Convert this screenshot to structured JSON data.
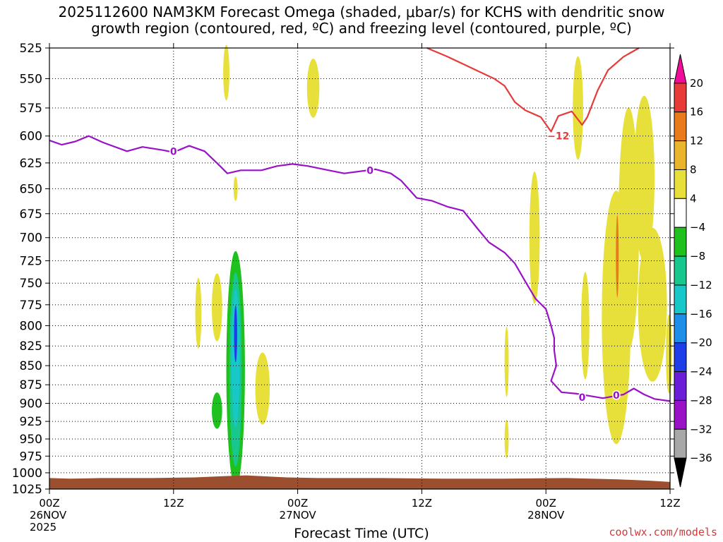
{
  "title_line1": "2025112600 NAM3KM Forecast Omega (shaded, μbar/s) for KCHS with dendritic snow",
  "title_line2": "growth region (contoured, red, ºC) and freezing level (contoured, purple, ºC)",
  "credit": "coolwx.com/models",
  "chart_data": {
    "type": "time-height",
    "title": "2025112600 NAM3KM Forecast Omega (shaded, μbar/s) for KCHS with dendritic snow growth region (contoured, red, ºC) and freezing level (contoured, purple, ºC)",
    "xlabel": "Forecast Time (UTC)",
    "x_ticks": [
      {
        "hour": 0,
        "l1": "00Z",
        "l2": "26NOV",
        "l3": "2025"
      },
      {
        "hour": 12,
        "l1": "12Z",
        "l2": "",
        "l3": ""
      },
      {
        "hour": 24,
        "l1": "00Z",
        "l2": "27NOV",
        "l3": ""
      },
      {
        "hour": 36,
        "l1": "12Z",
        "l2": "",
        "l3": ""
      },
      {
        "hour": 48,
        "l1": "00Z",
        "l2": "28NOV",
        "l3": ""
      },
      {
        "hour": 60,
        "l1": "12Z",
        "l2": "",
        "l3": ""
      }
    ],
    "xlim_hours": [
      0,
      60
    ],
    "ylabel": "",
    "y_ticks_hpa": [
      525,
      550,
      575,
      600,
      625,
      650,
      675,
      700,
      725,
      750,
      775,
      800,
      825,
      850,
      875,
      900,
      925,
      950,
      975,
      1000,
      1025
    ],
    "ylim_hpa": [
      525,
      1025
    ],
    "grid": "dotted",
    "colorbar": {
      "labels": [
        "20",
        "16",
        "12",
        "8",
        "4",
        "−4",
        "−8",
        "−12",
        "−16",
        "−20",
        "−24",
        "−28",
        "−32",
        "−36"
      ],
      "colors": [
        "#ee0c98",
        "#e63b37",
        "#e87b1e",
        "#e8b52c",
        "#e8e03a",
        "#ffffff",
        "#1ec11e",
        "#18c78e",
        "#18c7c7",
        "#1e8fe8",
        "#1e3ee8",
        "#6a1ed8",
        "#9a12c8",
        "#a8a8a8",
        "#000000"
      ]
    },
    "series": [
      {
        "name": "0",
        "color": "#9912c8",
        "points": [
          [
            0,
            604
          ],
          [
            1.2,
            608
          ],
          [
            2.5,
            605
          ],
          [
            3.8,
            600
          ],
          [
            5.2,
            606
          ],
          [
            7.5,
            614
          ],
          [
            9,
            610
          ],
          [
            11,
            613
          ],
          [
            12,
            615
          ],
          [
            13.5,
            609
          ],
          [
            15,
            614
          ],
          [
            16.5,
            628
          ],
          [
            17.2,
            635
          ],
          [
            18.5,
            632
          ],
          [
            20.5,
            632
          ],
          [
            22,
            628
          ],
          [
            23.5,
            626
          ],
          [
            25,
            628
          ],
          [
            27,
            632
          ],
          [
            28.5,
            635
          ],
          [
            30,
            633
          ],
          [
            31.5,
            631
          ],
          [
            33,
            635
          ],
          [
            34,
            642
          ],
          [
            35.5,
            659
          ],
          [
            37,
            662
          ],
          [
            38.5,
            668
          ],
          [
            40,
            672
          ],
          [
            41.5,
            692
          ],
          [
            42.5,
            705
          ],
          [
            44,
            716
          ],
          [
            45,
            728
          ],
          [
            46,
            748
          ],
          [
            47,
            768
          ],
          [
            48,
            780
          ],
          [
            48.5,
            800
          ],
          [
            48.8,
            815
          ],
          [
            48.8,
            830
          ],
          [
            49,
            850
          ],
          [
            48.5,
            870
          ],
          [
            49.5,
            885
          ],
          [
            51,
            887
          ],
          [
            53.5,
            893
          ],
          [
            55.5,
            888
          ],
          [
            56.5,
            880
          ],
          [
            57.5,
            888
          ],
          [
            58.5,
            894
          ],
          [
            60,
            897
          ]
        ]
      },
      {
        "name": "-12",
        "color": "#e63b3b",
        "points": [
          [
            36.5,
            525
          ],
          [
            38.5,
            532
          ],
          [
            40,
            538
          ],
          [
            42,
            546
          ],
          [
            43,
            550
          ],
          [
            44,
            556
          ],
          [
            45,
            570
          ],
          [
            46,
            577
          ],
          [
            47.5,
            583
          ],
          [
            48.5,
            596
          ],
          [
            49.2,
            582
          ],
          [
            50.5,
            578
          ],
          [
            51.5,
            590
          ],
          [
            52,
            583
          ],
          [
            53,
            560
          ],
          [
            54,
            543
          ],
          [
            55.5,
            532
          ],
          [
            57,
            525
          ]
        ]
      }
    ],
    "contour_labels": [
      {
        "text": "0",
        "hour": 12,
        "hpa": 614,
        "color": "#9912c8"
      },
      {
        "text": "0",
        "hour": 31,
        "hpa": 632,
        "color": "#9912c8"
      },
      {
        "text": "0",
        "hour": 51.5,
        "hpa": 892,
        "color": "#9912c8"
      },
      {
        "text": "0",
        "hour": 54.8,
        "hpa": 889,
        "color": "#9912c8"
      },
      {
        "text": "−12",
        "hour": 49.2,
        "hpa": 600,
        "color": "#e63b3b"
      }
    ],
    "omega_blobs": [
      {
        "color": "#e8e03a",
        "hour": 17.1,
        "hpa": 545,
        "rx_h": 0.3,
        "ry_hpa": 23
      },
      {
        "color": "#e8e03a",
        "hour": 25.5,
        "hpa": 558,
        "rx_h": 0.6,
        "ry_hpa": 25
      },
      {
        "color": "#e8e03a",
        "hour": 18,
        "hpa": 650,
        "rx_h": 0.2,
        "ry_hpa": 12
      },
      {
        "color": "#e8e03a",
        "hour": 14.4,
        "hpa": 785,
        "rx_h": 0.3,
        "ry_hpa": 42
      },
      {
        "color": "#e8e03a",
        "hour": 16.2,
        "hpa": 778,
        "rx_h": 0.5,
        "ry_hpa": 40
      },
      {
        "color": "#e8e03a",
        "hour": 20.6,
        "hpa": 880,
        "rx_h": 0.7,
        "ry_hpa": 48
      },
      {
        "color": "#1ec11e",
        "hour": 16.2,
        "hpa": 910,
        "rx_h": 0.5,
        "ry_hpa": 25
      },
      {
        "color": "#1ec11e",
        "hour": 18,
        "hpa": 855,
        "rx_h": 0.9,
        "ry_hpa": 152
      },
      {
        "color": "#18c78e",
        "hour": 18,
        "hpa": 855,
        "rx_h": 0.6,
        "ry_hpa": 125
      },
      {
        "color": "#18c7c7",
        "hour": 18,
        "hpa": 840,
        "rx_h": 0.4,
        "ry_hpa": 88
      },
      {
        "color": "#1e3ee8",
        "hour": 18,
        "hpa": 810,
        "rx_h": 0.15,
        "ry_hpa": 35
      },
      {
        "color": "#e8e03a",
        "hour": 51.1,
        "hpa": 575,
        "rx_h": 0.5,
        "ry_hpa": 45
      },
      {
        "color": "#e8e03a",
        "hour": 46.9,
        "hpa": 700,
        "rx_h": 0.5,
        "ry_hpa": 70
      },
      {
        "color": "#e8e03a",
        "hour": 44.2,
        "hpa": 845,
        "rx_h": 0.2,
        "ry_hpa": 45
      },
      {
        "color": "#e8e03a",
        "hour": 44.2,
        "hpa": 950,
        "rx_h": 0.2,
        "ry_hpa": 28
      },
      {
        "color": "#e8e03a",
        "hour": 51.8,
        "hpa": 800,
        "rx_h": 0.4,
        "ry_hpa": 65
      },
      {
        "color": "#e8e03a",
        "hour": 54.8,
        "hpa": 790,
        "rx_h": 1.4,
        "ry_hpa": 150
      },
      {
        "color": "#e8e03a",
        "hour": 56,
        "hpa": 690,
        "rx_h": 1.0,
        "ry_hpa": 125
      },
      {
        "color": "#e87b1e",
        "hour": 54.9,
        "hpa": 720,
        "rx_h": 0.12,
        "ry_hpa": 45
      },
      {
        "color": "#e8e03a",
        "hour": 57.5,
        "hpa": 640,
        "rx_h": 1.0,
        "ry_hpa": 80
      },
      {
        "color": "#e8e03a",
        "hour": 58.3,
        "hpa": 775,
        "rx_h": 1.4,
        "ry_hpa": 90
      },
      {
        "color": "#e8e03a",
        "hour": 59.9,
        "hpa": 835,
        "rx_h": 0.3,
        "ry_hpa": 50
      }
    ],
    "terrain": {
      "color": "#9b4f2f",
      "points": [
        [
          0,
          1008
        ],
        [
          2,
          1009
        ],
        [
          5,
          1008
        ],
        [
          10,
          1008
        ],
        [
          14,
          1007
        ],
        [
          17,
          1005
        ],
        [
          19,
          1004
        ],
        [
          23,
          1007
        ],
        [
          26,
          1008
        ],
        [
          32,
          1008
        ],
        [
          38,
          1009
        ],
        [
          44,
          1009
        ],
        [
          50,
          1008
        ],
        [
          55,
          1010
        ],
        [
          58,
          1012
        ],
        [
          60,
          1014
        ]
      ]
    }
  }
}
